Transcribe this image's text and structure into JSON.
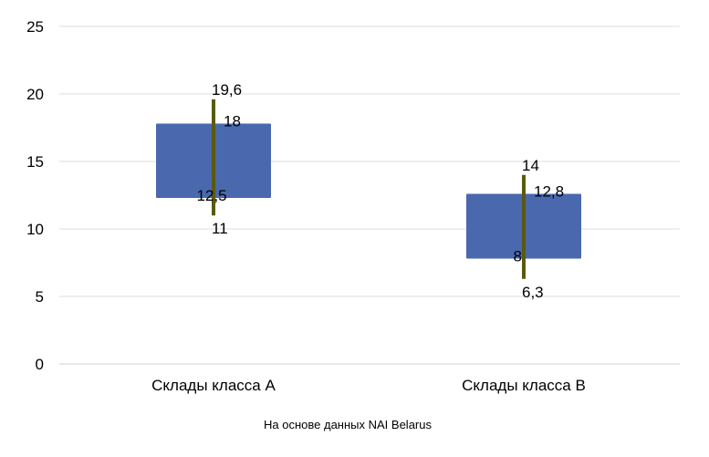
{
  "chart_data": {
    "type": "candlestick",
    "categories": [
      "Склады класса А",
      "Склады класса В"
    ],
    "series": [
      {
        "category": "Склады класса А",
        "high": 19.6,
        "low": 11,
        "open": 18,
        "close": 12.5,
        "labels": {
          "high": "19,6",
          "low": "11",
          "open": "18",
          "close": "12,5"
        }
      },
      {
        "category": "Склады класса В",
        "high": 14,
        "low": 6.3,
        "open": 12.8,
        "close": 8,
        "labels": {
          "high": "14",
          "low": "6,3",
          "open": "12,8",
          "close": "8"
        }
      }
    ],
    "y_ticks": [
      0,
      5,
      10,
      15,
      20,
      25
    ],
    "ylim": [
      0,
      25
    ],
    "grid": true,
    "box_color": "#4a68ae",
    "whisker_color": "#5a5a0f",
    "footnote": "На основе данных NAI Belarus"
  }
}
